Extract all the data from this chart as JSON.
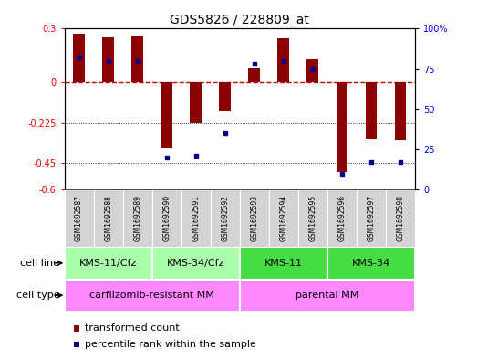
{
  "title": "GDS5826 / 228809_at",
  "samples": [
    "GSM1692587",
    "GSM1692588",
    "GSM1692589",
    "GSM1692590",
    "GSM1692591",
    "GSM1692592",
    "GSM1692593",
    "GSM1692594",
    "GSM1692595",
    "GSM1692596",
    "GSM1692597",
    "GSM1692598"
  ],
  "transformed_count": [
    0.27,
    0.25,
    0.255,
    -0.37,
    -0.225,
    -0.16,
    0.08,
    0.245,
    0.13,
    -0.5,
    -0.32,
    -0.325
  ],
  "percentile_rank": [
    82,
    80,
    80,
    20,
    21,
    35,
    78,
    80,
    75,
    10,
    17,
    17
  ],
  "cell_lines": [
    {
      "label": "KMS-11/Cfz",
      "start": 0,
      "end": 3,
      "color": "#aaffaa"
    },
    {
      "label": "KMS-34/Cfz",
      "start": 3,
      "end": 6,
      "color": "#aaffaa"
    },
    {
      "label": "KMS-11",
      "start": 6,
      "end": 9,
      "color": "#44dd44"
    },
    {
      "label": "KMS-34",
      "start": 9,
      "end": 12,
      "color": "#44dd44"
    }
  ],
  "cell_types": [
    {
      "label": "carfilzomib-resistant MM",
      "start": 0,
      "end": 6,
      "color": "#ff88ff"
    },
    {
      "label": "parental MM",
      "start": 6,
      "end": 12,
      "color": "#ff88ff"
    }
  ],
  "ylim_left": [
    -0.6,
    0.3
  ],
  "ylim_right": [
    0,
    100
  ],
  "yticks_left": [
    -0.6,
    -0.45,
    -0.225,
    0,
    0.3
  ],
  "yticks_right": [
    0,
    25,
    50,
    75,
    100
  ],
  "bar_color": "#8B0000",
  "dot_color": "#00008B",
  "hline_color": "#CC0000",
  "title_fontsize": 10,
  "tick_fontsize": 7,
  "label_fontsize": 8,
  "legend_fontsize": 8,
  "sample_fontsize": 5.5
}
